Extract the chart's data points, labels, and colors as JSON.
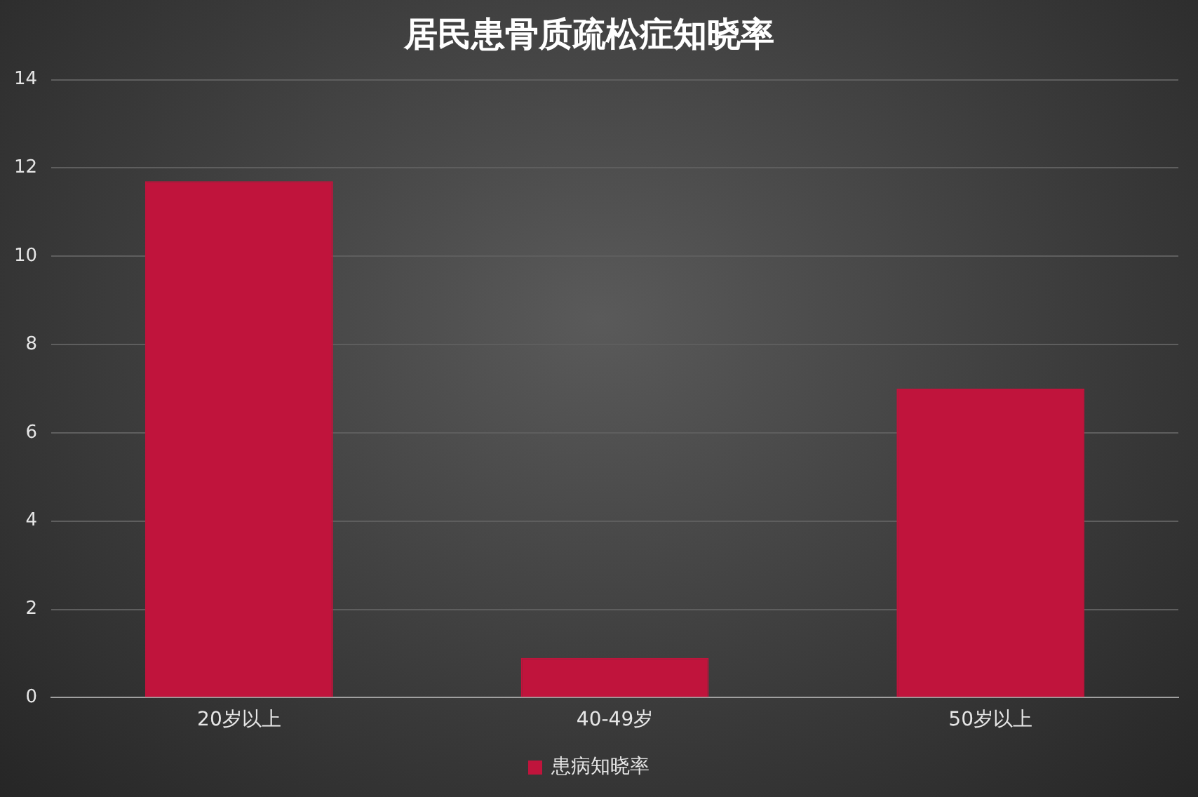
{
  "chart_data": {
    "type": "bar",
    "title": "居民患骨质疏松症知晓率",
    "categories": [
      "20岁以上",
      "40-49岁",
      "50岁以上"
    ],
    "series": [
      {
        "name": "患病知晓率",
        "color": "#c0143c",
        "values": [
          11.7,
          0.9,
          7.0
        ]
      }
    ],
    "ylim": [
      0,
      14
    ],
    "yticks": [
      0,
      2,
      4,
      6,
      8,
      10,
      12,
      14
    ],
    "grid": "y",
    "legend": "bottom"
  }
}
